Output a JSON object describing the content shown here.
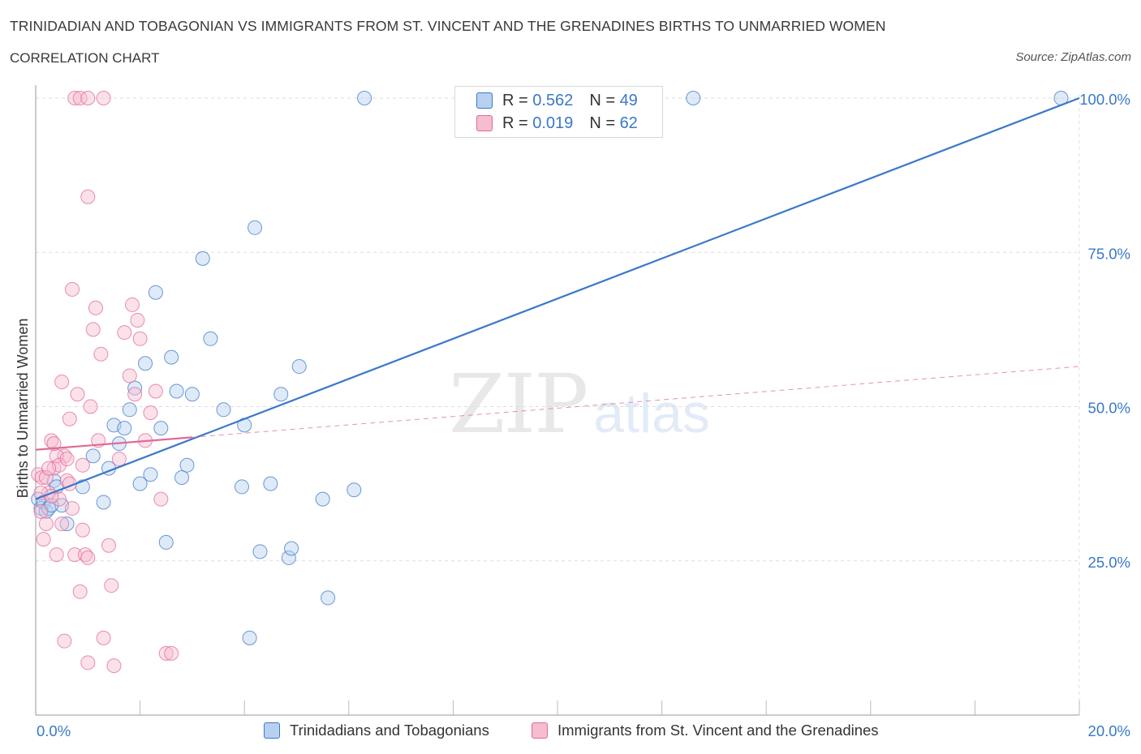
{
  "title": "TRINIDADIAN AND TOBAGONIAN VS IMMIGRANTS FROM ST. VINCENT AND THE GRENADINES BIRTHS TO UNMARRIED WOMEN",
  "subtitle": "CORRELATION CHART",
  "source": "Source: ZipAtlas.com",
  "watermark": {
    "zip": "ZIP",
    "atlas": "atlas"
  },
  "legend": {
    "blue": {
      "r_label": "R =",
      "r_value": "0.562",
      "n_label": "N =",
      "n_value": "49"
    },
    "pink": {
      "r_label": "R =",
      "r_value": "0.019",
      "n_label": "N =",
      "n_value": "62"
    }
  },
  "chart_data": {
    "type": "scatter",
    "title": "TRINIDADIAN AND TOBAGONIAN VS IMMIGRANTS FROM ST. VINCENT AND THE GRENADINES BIRTHS TO UNMARRIED WOMEN",
    "xlabel": "",
    "ylabel": "Births to Unmarried Women",
    "xlim": [
      0,
      20
    ],
    "ylim": [
      0,
      100
    ],
    "x_tick_labels": [
      {
        "value": 0,
        "label": "0.0%"
      },
      {
        "value": 20,
        "label": "20.0%"
      }
    ],
    "y_tick_labels": [
      {
        "value": 25,
        "label": "25.0%"
      },
      {
        "value": 50,
        "label": "50.0%"
      },
      {
        "value": 75,
        "label": "75.0%"
      },
      {
        "value": 100,
        "label": "100.0%"
      }
    ],
    "grid": true,
    "colors": {
      "blue": "#3a78c8",
      "blue_fill": "#b8d0f0",
      "pink": "#e06a98",
      "pink_fill": "#f6bcd0"
    },
    "series": [
      {
        "name": "Trinidadians and Tobagonians",
        "color": "blue",
        "points": [
          [
            0.05,
            35.0
          ],
          [
            0.1,
            33.5
          ],
          [
            0.15,
            34.5
          ],
          [
            0.2,
            33.0
          ],
          [
            0.25,
            33.5
          ],
          [
            0.35,
            38.0
          ],
          [
            0.4,
            37.0
          ],
          [
            0.5,
            34.0
          ],
          [
            0.6,
            31.0
          ],
          [
            0.9,
            37.0
          ],
          [
            1.1,
            42.0
          ],
          [
            1.3,
            34.5
          ],
          [
            1.4,
            40.0
          ],
          [
            1.5,
            47.0
          ],
          [
            1.6,
            44.0
          ],
          [
            1.7,
            46.5
          ],
          [
            1.8,
            49.5
          ],
          [
            1.9,
            53.0
          ],
          [
            2.0,
            37.5
          ],
          [
            2.1,
            57.0
          ],
          [
            2.2,
            39.0
          ],
          [
            2.3,
            68.5
          ],
          [
            2.4,
            46.5
          ],
          [
            2.5,
            28.0
          ],
          [
            2.6,
            58.0
          ],
          [
            2.7,
            52.5
          ],
          [
            2.8,
            38.5
          ],
          [
            2.9,
            40.5
          ],
          [
            3.0,
            52.0
          ],
          [
            3.2,
            74.0
          ],
          [
            3.35,
            61.0
          ],
          [
            3.6,
            49.5
          ],
          [
            3.95,
            37.0
          ],
          [
            4.0,
            47.0
          ],
          [
            4.2,
            79.0
          ],
          [
            4.3,
            26.5
          ],
          [
            4.5,
            37.5
          ],
          [
            4.7,
            52.0
          ],
          [
            4.85,
            25.5
          ],
          [
            4.9,
            27.0
          ],
          [
            5.05,
            56.5
          ],
          [
            5.5,
            35.0
          ],
          [
            5.6,
            19.0
          ],
          [
            4.1,
            12.5
          ],
          [
            6.1,
            36.5
          ],
          [
            6.3,
            100.0
          ],
          [
            12.6,
            100.0
          ],
          [
            19.65,
            100.0
          ],
          [
            0.3,
            34.0
          ]
        ],
        "trend": {
          "x0": 0.0,
          "y0": 35.0,
          "x1": 20.0,
          "y1": 100.0,
          "solid_to": 20.0
        }
      },
      {
        "name": "Immigrants from St. Vincent and the Grenadines",
        "color": "pink",
        "points": [
          [
            0.05,
            39.0
          ],
          [
            0.1,
            33.0
          ],
          [
            0.12,
            38.5
          ],
          [
            0.15,
            28.5
          ],
          [
            0.2,
            31.0
          ],
          [
            0.25,
            36.0
          ],
          [
            0.3,
            44.5
          ],
          [
            0.35,
            40.0
          ],
          [
            0.4,
            26.0
          ],
          [
            0.45,
            35.0
          ],
          [
            0.5,
            54.0
          ],
          [
            0.55,
            42.0
          ],
          [
            0.6,
            38.0
          ],
          [
            0.65,
            48.0
          ],
          [
            0.7,
            69.0
          ],
          [
            0.75,
            26.0
          ],
          [
            0.8,
            52.0
          ],
          [
            0.85,
            20.0
          ],
          [
            0.9,
            30.0
          ],
          [
            0.95,
            26.0
          ],
          [
            1.0,
            84.0
          ],
          [
            1.05,
            50.0
          ],
          [
            1.1,
            62.5
          ],
          [
            1.15,
            66.0
          ],
          [
            1.2,
            44.5
          ],
          [
            1.25,
            58.5
          ],
          [
            1.3,
            12.5
          ],
          [
            1.4,
            27.5
          ],
          [
            1.45,
            21.0
          ],
          [
            1.5,
            8.0
          ],
          [
            1.6,
            41.5
          ],
          [
            1.7,
            62.0
          ],
          [
            1.8,
            55.0
          ],
          [
            1.85,
            66.5
          ],
          [
            1.9,
            52.0
          ],
          [
            1.95,
            64.0
          ],
          [
            2.0,
            61.0
          ],
          [
            2.1,
            44.5
          ],
          [
            2.2,
            49.0
          ],
          [
            2.3,
            52.5
          ],
          [
            2.4,
            35.0
          ],
          [
            2.5,
            10.0
          ],
          [
            2.6,
            10.0
          ],
          [
            1.0,
            8.5
          ],
          [
            0.4,
            42.0
          ],
          [
            0.45,
            40.5
          ],
          [
            0.6,
            41.5
          ],
          [
            0.55,
            12.0
          ],
          [
            0.9,
            40.5
          ],
          [
            0.7,
            33.5
          ],
          [
            0.2,
            38.5
          ],
          [
            1.0,
            25.5
          ],
          [
            0.35,
            44.0
          ],
          [
            0.5,
            31.0
          ],
          [
            0.75,
            100.0
          ],
          [
            0.85,
            100.0
          ],
          [
            1.0,
            100.0
          ],
          [
            1.3,
            100.0
          ],
          [
            0.1,
            36.0
          ],
          [
            0.3,
            35.5
          ],
          [
            0.25,
            40.0
          ],
          [
            0.65,
            37.5
          ]
        ],
        "trend": {
          "x0": 0.0,
          "y0": 43.0,
          "x1": 20.0,
          "y1": 56.5,
          "solid_to": 3.0
        }
      }
    ]
  },
  "bottom_legend": {
    "blue_label": "Trinidadians and Tobagonians",
    "pink_label": "Immigrants from St. Vincent and the Grenadines"
  }
}
